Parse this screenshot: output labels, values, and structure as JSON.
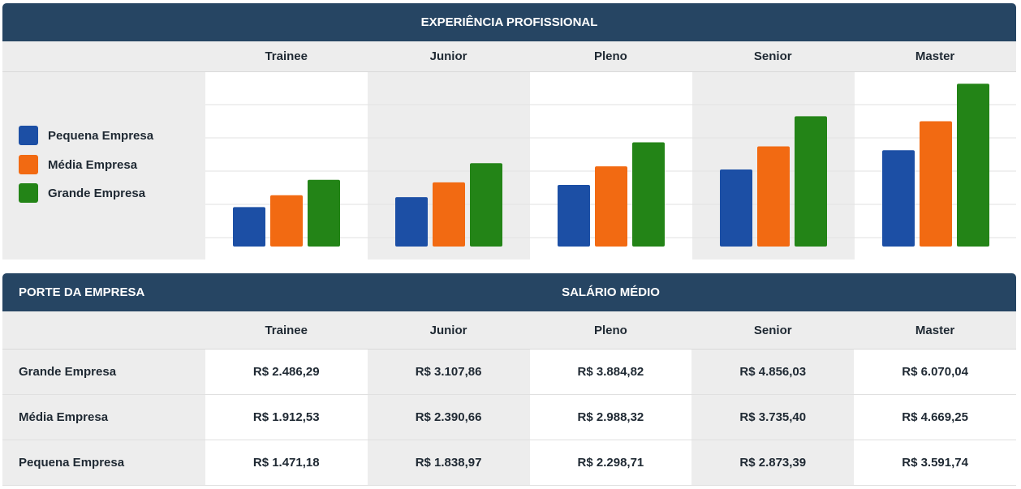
{
  "chart_panel": {
    "header": "EXPERIÊNCIA PROFISSIONAL",
    "columns": [
      "Trainee",
      "Junior",
      "Pleno",
      "Senior",
      "Master"
    ]
  },
  "legend": [
    {
      "label": "Pequena Empresa",
      "color": "#1c4fa5"
    },
    {
      "label": "Média Empresa",
      "color": "#f26a12"
    },
    {
      "label": "Grande Empresa",
      "color": "#238417"
    }
  ],
  "chart_data": {
    "type": "bar",
    "categories": [
      "Trainee",
      "Junior",
      "Pleno",
      "Senior",
      "Master"
    ],
    "series": [
      {
        "name": "Pequena Empresa",
        "color": "#1c4fa5",
        "values": [
          1471.18,
          1838.97,
          2298.71,
          2873.39,
          3591.74
        ]
      },
      {
        "name": "Média Empresa",
        "color": "#f26a12",
        "values": [
          1912.53,
          2390.66,
          2988.32,
          3735.4,
          4669.25
        ]
      },
      {
        "name": "Grande Empresa",
        "color": "#238417",
        "values": [
          2486.29,
          3107.86,
          3884.82,
          4856.03,
          6070.04
        ]
      }
    ],
    "ylim": [
      0,
      6500
    ],
    "grid": true,
    "legend_position": "left"
  },
  "table": {
    "header_left": "PORTE DA EMPRESA",
    "header_right": "SALÁRIO MÉDIO",
    "columns": [
      "Trainee",
      "Junior",
      "Pleno",
      "Senior",
      "Master"
    ],
    "rows": [
      {
        "label": "Grande Empresa",
        "values": [
          "R$ 2.486,29",
          "R$ 3.107,86",
          "R$ 3.884,82",
          "R$ 4.856,03",
          "R$ 6.070,04"
        ]
      },
      {
        "label": "Média Empresa",
        "values": [
          "R$ 1.912,53",
          "R$ 2.390,66",
          "R$ 2.988,32",
          "R$ 3.735,40",
          "R$ 4.669,25"
        ]
      },
      {
        "label": "Pequena Empresa",
        "values": [
          "R$ 1.471,18",
          "R$ 1.838,97",
          "R$ 2.298,71",
          "R$ 2.873,39",
          "R$ 3.591,74"
        ]
      }
    ]
  }
}
